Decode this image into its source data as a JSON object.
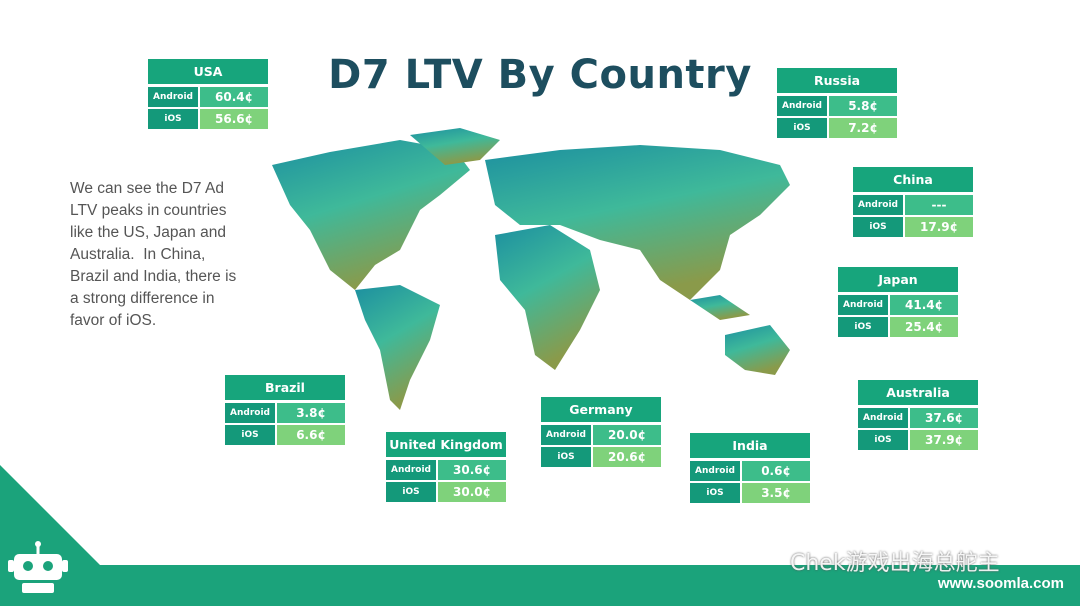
{
  "title": "D7 LTV By Country",
  "description": [
    "We can see the D7 Ad",
    "LTV peaks in countries",
    "like the US, Japan and",
    "Australia.  In China,",
    "Brazil and India, there is",
    "a strong difference in",
    "favor of iOS."
  ],
  "countries": [
    {
      "name": "USA",
      "rows": [
        {
          "label": "Android",
          "value": "60.4¢"
        },
        {
          "label": "iOS",
          "value": "56.6¢"
        }
      ]
    },
    {
      "name": "Russia",
      "rows": [
        {
          "label": "Android",
          "value": "5.8¢"
        },
        {
          "label": "iOS",
          "value": "7.2¢"
        }
      ]
    },
    {
      "name": "China",
      "rows": [
        {
          "label": "Android",
          "value": "---"
        },
        {
          "label": "iOS",
          "value": "17.9¢"
        }
      ]
    },
    {
      "name": "Japan",
      "rows": [
        {
          "label": "Android",
          "value": "41.4¢"
        },
        {
          "label": "iOS",
          "value": "25.4¢"
        }
      ]
    },
    {
      "name": "Australia",
      "rows": [
        {
          "label": "Android",
          "value": "37.6¢"
        },
        {
          "label": "iOS",
          "value": "37.9¢"
        }
      ]
    },
    {
      "name": "Brazil",
      "rows": [
        {
          "label": "Android",
          "value": "3.8¢"
        },
        {
          "label": "iOS",
          "value": "6.6¢"
        }
      ]
    },
    {
      "name": "United Kingdom",
      "rows": [
        {
          "label": "Android",
          "value": "30.6¢"
        },
        {
          "label": "iOS",
          "value": "30.0¢"
        }
      ]
    },
    {
      "name": "Germany",
      "rows": [
        {
          "label": "Android",
          "value": "20.0¢"
        },
        {
          "label": "iOS",
          "value": "20.6¢"
        }
      ]
    },
    {
      "name": "India",
      "rows": [
        {
          "label": "Android",
          "value": "0.6¢"
        },
        {
          "label": "iOS",
          "value": "3.5¢"
        }
      ]
    }
  ],
  "footer": {
    "watermark": "Chek游戏出海总舵主",
    "website": "www.soomla.com"
  }
}
